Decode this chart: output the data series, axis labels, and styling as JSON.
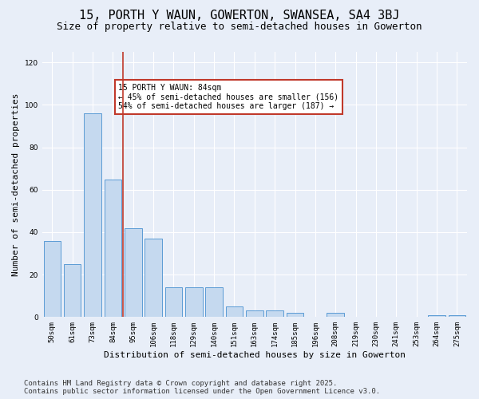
{
  "title1": "15, PORTH Y WAUN, GOWERTON, SWANSEA, SA4 3BJ",
  "title2": "Size of property relative to semi-detached houses in Gowerton",
  "xlabel": "Distribution of semi-detached houses by size in Gowerton",
  "ylabel": "Number of semi-detached properties",
  "categories": [
    "50sqm",
    "61sqm",
    "73sqm",
    "84sqm",
    "95sqm",
    "106sqm",
    "118sqm",
    "129sqm",
    "140sqm",
    "151sqm",
    "163sqm",
    "174sqm",
    "185sqm",
    "196sqm",
    "208sqm",
    "219sqm",
    "230sqm",
    "241sqm",
    "253sqm",
    "264sqm",
    "275sqm"
  ],
  "values": [
    36,
    25,
    96,
    65,
    42,
    37,
    14,
    14,
    14,
    5,
    3,
    3,
    2,
    0,
    2,
    0,
    0,
    0,
    0,
    1,
    1
  ],
  "bar_color": "#c5d9ef",
  "bar_edge_color": "#5b9bd5",
  "vline_x_index": 3,
  "vline_color": "#c0392b",
  "annotation_text": "15 PORTH Y WAUN: 84sqm\n← 45% of semi-detached houses are smaller (156)\n54% of semi-detached houses are larger (187) →",
  "annotation_box_color": "#ffffff",
  "annotation_box_edge": "#c0392b",
  "footer": "Contains HM Land Registry data © Crown copyright and database right 2025.\nContains public sector information licensed under the Open Government Licence v3.0.",
  "ylim": [
    0,
    125
  ],
  "bg_color": "#e8eef8",
  "plot_bg_color": "#e8eef8",
  "grid_color": "#ffffff",
  "title1_fontsize": 11,
  "title2_fontsize": 9,
  "footer_fontsize": 6.5,
  "tick_fontsize": 6.5,
  "ylabel_fontsize": 8,
  "xlabel_fontsize": 8,
  "annot_fontsize": 7
}
